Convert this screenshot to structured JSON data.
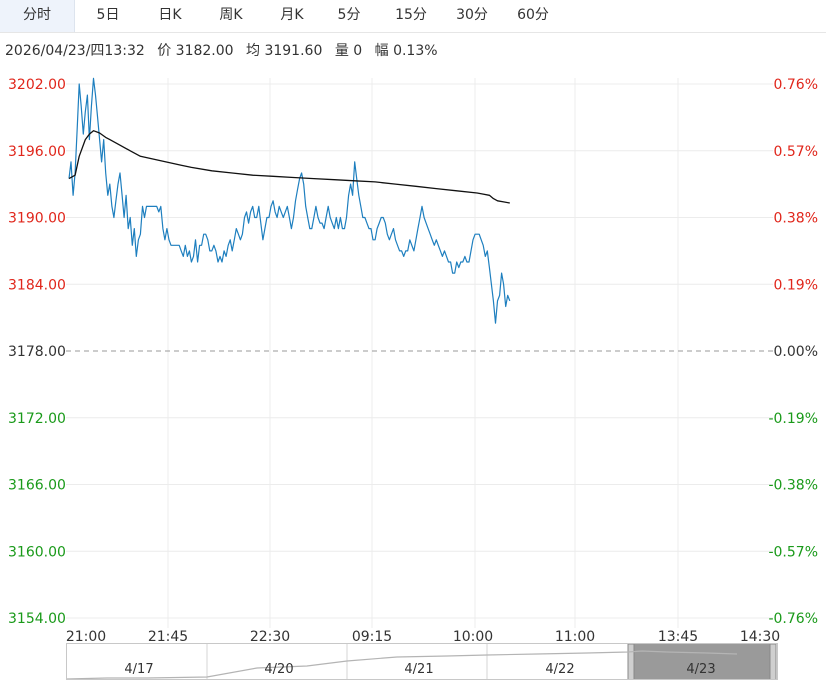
{
  "tabs": [
    {
      "label": "分时",
      "active": true
    },
    {
      "label": "5日"
    },
    {
      "label": "日K"
    },
    {
      "label": "周K"
    },
    {
      "label": "月K"
    },
    {
      "label": "5分"
    },
    {
      "label": "15分"
    },
    {
      "label": "30分"
    },
    {
      "label": "60分"
    }
  ],
  "info": {
    "datetime": "2026/04/23/四13:32",
    "price": "价 3182.00",
    "avg": "均 3191.60",
    "volume": "量 0",
    "range": "幅 0.13%"
  },
  "colors": {
    "up": "#e0261b",
    "down": "#1a9a1a",
    "price_line": "#1e7fbf",
    "avg_line": "#111111",
    "grid": "#ececec"
  },
  "chart_data": {
    "type": "line",
    "y_ticks": [
      "3202.00",
      "3196.00",
      "3190.00",
      "3184.00",
      "3178.00",
      "3172.00",
      "3166.00",
      "3160.00",
      "3154.00"
    ],
    "pct_ticks": [
      "0.76%",
      "0.57%",
      "0.38%",
      "0.19%",
      "0.00%",
      "-0.19%",
      "-0.38%",
      "-0.57%",
      "-0.76%"
    ],
    "ylim": [
      3154,
      3202
    ],
    "prev_close": 3178,
    "x_ticks": [
      "21:00",
      "21:45",
      "22:30",
      "09:15",
      "10:00",
      "11:00",
      "13:45",
      "14:30"
    ],
    "x_range": [
      0,
      345
    ],
    "series": [
      {
        "points": [
          [
            0,
            3193.5
          ],
          [
            1,
            3195
          ],
          [
            2,
            3192
          ],
          [
            3,
            3194
          ],
          [
            4,
            3198
          ],
          [
            5,
            3202
          ],
          [
            6,
            3200
          ],
          [
            7,
            3197.5
          ],
          [
            8,
            3199.5
          ],
          [
            9,
            3201
          ],
          [
            10,
            3197
          ],
          [
            11,
            3200
          ],
          [
            12,
            3202.5
          ],
          [
            13,
            3201
          ],
          [
            14,
            3199
          ],
          [
            15,
            3197
          ],
          [
            16,
            3195
          ],
          [
            17,
            3197
          ],
          [
            18,
            3194
          ],
          [
            19,
            3192
          ],
          [
            20,
            3193
          ],
          [
            21,
            3191
          ],
          [
            22,
            3190
          ],
          [
            23,
            3191.5
          ],
          [
            24,
            3193
          ],
          [
            25,
            3194
          ],
          [
            26,
            3192
          ],
          [
            27,
            3190
          ],
          [
            28,
            3192
          ],
          [
            29,
            3189
          ],
          [
            30,
            3190
          ],
          [
            31,
            3187.5
          ],
          [
            32,
            3189
          ],
          [
            33,
            3186.5
          ],
          [
            34,
            3188
          ],
          [
            35,
            3188.5
          ],
          [
            36,
            3191
          ],
          [
            37,
            3190
          ],
          [
            38,
            3191
          ],
          [
            39,
            3191
          ],
          [
            40,
            3191
          ],
          [
            41,
            3191
          ],
          [
            42,
            3191
          ],
          [
            43,
            3191
          ],
          [
            44,
            3190.5
          ],
          [
            45,
            3191
          ],
          [
            46,
            3189
          ],
          [
            47,
            3188
          ],
          [
            48,
            3189
          ],
          [
            49,
            3188
          ],
          [
            50,
            3187.5
          ],
          [
            51,
            3187.5
          ],
          [
            52,
            3187.5
          ],
          [
            53,
            3187.5
          ],
          [
            54,
            3187.5
          ],
          [
            55,
            3187
          ],
          [
            56,
            3186.5
          ],
          [
            57,
            3187.5
          ],
          [
            58,
            3186.5
          ],
          [
            59,
            3187
          ],
          [
            60,
            3186
          ],
          [
            61,
            3186.5
          ],
          [
            62,
            3188
          ],
          [
            63,
            3186
          ],
          [
            64,
            3187.5
          ],
          [
            65,
            3187.5
          ],
          [
            66,
            3188.5
          ],
          [
            67,
            3188.5
          ],
          [
            68,
            3188
          ],
          [
            69,
            3187
          ],
          [
            70,
            3187
          ],
          [
            71,
            3187.5
          ],
          [
            72,
            3187
          ],
          [
            73,
            3186
          ],
          [
            74,
            3186.5
          ],
          [
            75,
            3186
          ],
          [
            76,
            3187
          ],
          [
            77,
            3186.5
          ],
          [
            78,
            3187.5
          ],
          [
            79,
            3188
          ],
          [
            80,
            3187
          ],
          [
            81,
            3188
          ],
          [
            82,
            3189
          ],
          [
            83,
            3188.5
          ],
          [
            84,
            3188
          ],
          [
            85,
            3188.5
          ],
          [
            86,
            3190
          ],
          [
            87,
            3190.5
          ],
          [
            88,
            3189.5
          ],
          [
            89,
            3190.5
          ],
          [
            90,
            3191
          ],
          [
            91,
            3190
          ],
          [
            92,
            3190
          ],
          [
            93,
            3191
          ],
          [
            94,
            3189.5
          ],
          [
            95,
            3188
          ],
          [
            96,
            3189
          ],
          [
            97,
            3190
          ],
          [
            98,
            3190
          ],
          [
            99,
            3191
          ],
          [
            100,
            3191.5
          ],
          [
            101,
            3190.5
          ],
          [
            102,
            3190
          ],
          [
            103,
            3191
          ],
          [
            104,
            3190.5
          ],
          [
            105,
            3190
          ],
          [
            106,
            3190.5
          ],
          [
            107,
            3191
          ],
          [
            108,
            3190
          ],
          [
            109,
            3189
          ],
          [
            110,
            3190
          ],
          [
            111,
            3191.5
          ],
          [
            112,
            3192.5
          ],
          [
            113,
            3193.5
          ],
          [
            114,
            3194
          ],
          [
            115,
            3193
          ],
          [
            116,
            3191
          ],
          [
            117,
            3190
          ],
          [
            118,
            3189
          ],
          [
            119,
            3189
          ],
          [
            120,
            3190
          ],
          [
            121,
            3191
          ],
          [
            122,
            3190
          ],
          [
            123,
            3189.5
          ],
          [
            124,
            3189.5
          ],
          [
            125,
            3189
          ],
          [
            126,
            3190
          ],
          [
            127,
            3191
          ],
          [
            128,
            3190
          ],
          [
            129,
            3189.5
          ],
          [
            130,
            3189
          ],
          [
            131,
            3190
          ],
          [
            132,
            3189
          ],
          [
            133,
            3190
          ],
          [
            134,
            3189
          ],
          [
            135,
            3189
          ],
          [
            136,
            3190
          ],
          [
            137,
            3192
          ],
          [
            138,
            3193
          ],
          [
            139,
            3192
          ],
          [
            140,
            3195
          ],
          [
            141,
            3193.5
          ],
          [
            142,
            3192
          ],
          [
            143,
            3191
          ],
          [
            144,
            3190
          ],
          [
            145,
            3190
          ],
          [
            146,
            3189.5
          ],
          [
            147,
            3189
          ],
          [
            148,
            3189
          ],
          [
            149,
            3188
          ],
          [
            150,
            3188
          ],
          [
            151,
            3189
          ],
          [
            152,
            3189.5
          ],
          [
            153,
            3190
          ],
          [
            154,
            3190
          ],
          [
            155,
            3189.5
          ],
          [
            156,
            3188.5
          ],
          [
            157,
            3188
          ],
          [
            158,
            3188.5
          ],
          [
            159,
            3189
          ],
          [
            160,
            3188
          ],
          [
            161,
            3187.5
          ],
          [
            162,
            3187
          ],
          [
            163,
            3187
          ],
          [
            164,
            3186.5
          ],
          [
            165,
            3187
          ],
          [
            166,
            3187
          ],
          [
            167,
            3188
          ],
          [
            168,
            3187.5
          ],
          [
            169,
            3187
          ],
          [
            170,
            3188
          ],
          [
            171,
            3189
          ],
          [
            172,
            3190
          ],
          [
            173,
            3191
          ],
          [
            174,
            3190
          ],
          [
            175,
            3189.5
          ],
          [
            176,
            3189
          ],
          [
            177,
            3188.5
          ],
          [
            178,
            3188
          ],
          [
            179,
            3187.5
          ],
          [
            180,
            3188
          ],
          [
            181,
            3187.5
          ],
          [
            182,
            3187
          ],
          [
            183,
            3186.5
          ],
          [
            184,
            3187
          ],
          [
            185,
            3186.5
          ],
          [
            186,
            3186
          ],
          [
            187,
            3186
          ],
          [
            188,
            3185
          ],
          [
            189,
            3185
          ],
          [
            190,
            3186
          ],
          [
            191,
            3185.5
          ],
          [
            192,
            3186
          ],
          [
            193,
            3186
          ],
          [
            194,
            3186.5
          ],
          [
            195,
            3186
          ],
          [
            196,
            3186
          ],
          [
            197,
            3187
          ],
          [
            198,
            3188
          ],
          [
            199,
            3188.5
          ],
          [
            200,
            3188.5
          ],
          [
            201,
            3188.5
          ],
          [
            202,
            3188
          ],
          [
            203,
            3187.5
          ],
          [
            204,
            3186.5
          ],
          [
            205,
            3187
          ],
          [
            206,
            3185.5
          ],
          [
            207,
            3184
          ],
          [
            208,
            3182.5
          ],
          [
            209,
            3180.5
          ],
          [
            210,
            3182.5
          ],
          [
            211,
            3183
          ],
          [
            212,
            3185
          ],
          [
            213,
            3184
          ],
          [
            214,
            3182
          ],
          [
            215,
            3183
          ],
          [
            216,
            3182.5
          ]
        ]
      },
      {
        "points": [
          [
            0,
            3193.5
          ],
          [
            3,
            3193.8
          ],
          [
            5,
            3195.5
          ],
          [
            8,
            3197
          ],
          [
            10,
            3197.5
          ],
          [
            12,
            3197.8
          ],
          [
            15,
            3197.6
          ],
          [
            18,
            3197.2
          ],
          [
            20,
            3197
          ],
          [
            25,
            3196.5
          ],
          [
            30,
            3196
          ],
          [
            35,
            3195.5
          ],
          [
            40,
            3195.3
          ],
          [
            45,
            3195.1
          ],
          [
            50,
            3194.9
          ],
          [
            55,
            3194.7
          ],
          [
            60,
            3194.5
          ],
          [
            70,
            3194.2
          ],
          [
            80,
            3194
          ],
          [
            90,
            3193.8
          ],
          [
            100,
            3193.7
          ],
          [
            110,
            3193.6
          ],
          [
            120,
            3193.5
          ],
          [
            130,
            3193.4
          ],
          [
            140,
            3193.3
          ],
          [
            150,
            3193.2
          ],
          [
            160,
            3193
          ],
          [
            170,
            3192.8
          ],
          [
            180,
            3192.6
          ],
          [
            190,
            3192.4
          ],
          [
            200,
            3192.2
          ],
          [
            203,
            3192.1
          ],
          [
            206,
            3192
          ],
          [
            208,
            3191.7
          ],
          [
            210,
            3191.5
          ],
          [
            213,
            3191.4
          ],
          [
            216,
            3191.3
          ]
        ]
      }
    ]
  },
  "navigator": {
    "labels": [
      "4/17",
      "4/20",
      "4/21",
      "4/22",
      "4/23"
    ]
  }
}
